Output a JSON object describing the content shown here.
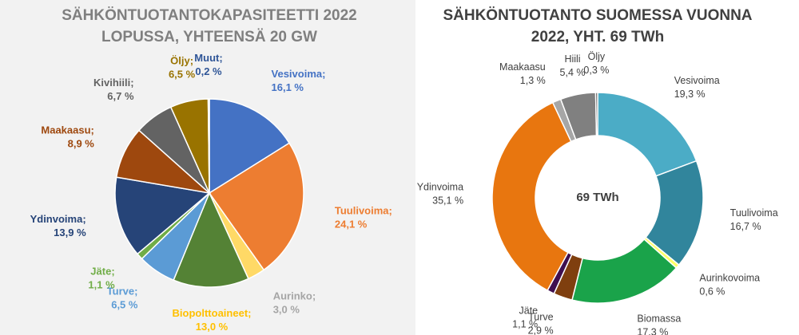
{
  "chart_data": [
    {
      "type": "pie",
      "title": [
        "SÄHKÖNTUOTANTOKAPASITEETTI 2022",
        "LOPUSSA, YHTEENSÄ 20 GW"
      ],
      "categories": [
        "Vesivoima;",
        "Tuulivoima;",
        "Aurinko;",
        "Biopolttoaineet;",
        "Turve;",
        "Jäte;",
        "Ydinvoima;",
        "Maakaasu;",
        "Kivihiili;",
        "Öljy;",
        "Muut;"
      ],
      "values": [
        16.1,
        24.1,
        3.0,
        13.0,
        6.5,
        1.1,
        13.9,
        8.9,
        6.7,
        6.5,
        0.2
      ],
      "value_labels": [
        "16,1 %",
        "24,1 %",
        "3,0 %",
        "13,0 %",
        "6,5 %",
        "1,1 %",
        "13,9 %",
        "8,9 %",
        "6,7 %",
        "6,5 %",
        "0,2 %"
      ],
      "colors": [
        "#4472c4",
        "#ed7d31",
        "#ffd966",
        "#548235",
        "#5b9bd5",
        "#70ad47",
        "#264478",
        "#9e480e",
        "#636363",
        "#997300",
        "#2f5597"
      ],
      "label_colors": [
        "#4472c4",
        "#ed7d31",
        "#a5a5a5",
        "#ffc000",
        "#5b9bd5",
        "#70ad47",
        "#264478",
        "#9e480e",
        "#636363",
        "#997300",
        "#2f5597"
      ]
    },
    {
      "type": "donut",
      "title": [
        "SÄHKÖNTUOTANTO SUOMESSA VUONNA",
        "2022, YHT. 69 TWh"
      ],
      "center_label": "69 TWh",
      "categories": [
        "Vesivoima",
        "Tuulivoima",
        "Aurinkovoima",
        "Biomassa",
        "Turve",
        "Jäte",
        "Ydinvoima",
        "Maakaasu",
        "Hiili",
        "Öljy"
      ],
      "values": [
        19.3,
        16.7,
        0.6,
        17.3,
        2.9,
        1.1,
        35.1,
        1.3,
        5.4,
        0.3
      ],
      "value_labels": [
        "19,3 %",
        "16,7 %",
        "0,6 %",
        "17,3 %",
        "2,9 %",
        "1,1 %",
        "35,1 %",
        "1,3 %",
        "5,4 %",
        "0,3 %"
      ],
      "colors": [
        "#4bacc6",
        "#31859c",
        "#ffff66",
        "#1aa34a",
        "#7f3f0f",
        "#3f0f4f",
        "#e8760f",
        "#a6a6a6",
        "#808080",
        "#404040"
      ]
    }
  ]
}
